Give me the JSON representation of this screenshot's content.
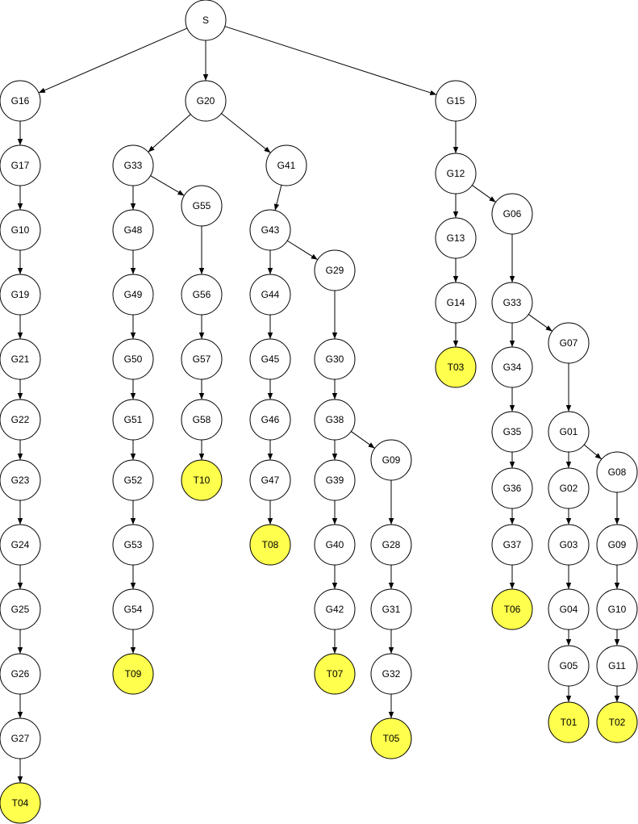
{
  "colors": {
    "node_fill": "#ffffff",
    "terminal_fill": "#ffff4d",
    "stroke": "#000000",
    "background": "#ffffff"
  },
  "nodes": [
    {
      "id": "S",
      "label": "S"
    },
    {
      "id": "G16",
      "label": "G16"
    },
    {
      "id": "G17",
      "label": "G17"
    },
    {
      "id": "G10a",
      "label": "G10"
    },
    {
      "id": "G19",
      "label": "G19"
    },
    {
      "id": "G21",
      "label": "G21"
    },
    {
      "id": "G22",
      "label": "G22"
    },
    {
      "id": "G23",
      "label": "G23"
    },
    {
      "id": "G24",
      "label": "G24"
    },
    {
      "id": "G25",
      "label": "G25"
    },
    {
      "id": "G26",
      "label": "G26"
    },
    {
      "id": "G27",
      "label": "G27"
    },
    {
      "id": "T04",
      "label": "T04",
      "terminal": true
    },
    {
      "id": "G20",
      "label": "G20"
    },
    {
      "id": "G33a",
      "label": "G33"
    },
    {
      "id": "G48",
      "label": "G48"
    },
    {
      "id": "G49",
      "label": "G49"
    },
    {
      "id": "G50",
      "label": "G50"
    },
    {
      "id": "G51",
      "label": "G51"
    },
    {
      "id": "G52",
      "label": "G52"
    },
    {
      "id": "G53",
      "label": "G53"
    },
    {
      "id": "G54",
      "label": "G54"
    },
    {
      "id": "T09",
      "label": "T09",
      "terminal": true
    },
    {
      "id": "G55",
      "label": "G55"
    },
    {
      "id": "G56",
      "label": "G56"
    },
    {
      "id": "G57",
      "label": "G57"
    },
    {
      "id": "G58",
      "label": "G58"
    },
    {
      "id": "T10",
      "label": "T10",
      "terminal": true
    },
    {
      "id": "G41",
      "label": "G41"
    },
    {
      "id": "G43",
      "label": "G43"
    },
    {
      "id": "G44",
      "label": "G44"
    },
    {
      "id": "G45",
      "label": "G45"
    },
    {
      "id": "G46",
      "label": "G46"
    },
    {
      "id": "G47",
      "label": "G47"
    },
    {
      "id": "T08",
      "label": "T08",
      "terminal": true
    },
    {
      "id": "G29",
      "label": "G29"
    },
    {
      "id": "G30",
      "label": "G30"
    },
    {
      "id": "G38",
      "label": "G38"
    },
    {
      "id": "G39",
      "label": "G39"
    },
    {
      "id": "G40",
      "label": "G40"
    },
    {
      "id": "G42",
      "label": "G42"
    },
    {
      "id": "T07",
      "label": "T07",
      "terminal": true
    },
    {
      "id": "G09a",
      "label": "G09"
    },
    {
      "id": "G28",
      "label": "G28"
    },
    {
      "id": "G31",
      "label": "G31"
    },
    {
      "id": "G32",
      "label": "G32"
    },
    {
      "id": "T05",
      "label": "T05",
      "terminal": true
    },
    {
      "id": "G15",
      "label": "G15"
    },
    {
      "id": "G12",
      "label": "G12"
    },
    {
      "id": "G13",
      "label": "G13"
    },
    {
      "id": "G14",
      "label": "G14"
    },
    {
      "id": "T03",
      "label": "T03",
      "terminal": true
    },
    {
      "id": "G06",
      "label": "G06"
    },
    {
      "id": "G33b",
      "label": "G33"
    },
    {
      "id": "G34",
      "label": "G34"
    },
    {
      "id": "G35",
      "label": "G35"
    },
    {
      "id": "G36",
      "label": "G36"
    },
    {
      "id": "G37",
      "label": "G37"
    },
    {
      "id": "T06",
      "label": "T06",
      "terminal": true
    },
    {
      "id": "G07",
      "label": "G07"
    },
    {
      "id": "G01",
      "label": "G01"
    },
    {
      "id": "G02",
      "label": "G02"
    },
    {
      "id": "G03",
      "label": "G03"
    },
    {
      "id": "G04",
      "label": "G04"
    },
    {
      "id": "G05",
      "label": "G05"
    },
    {
      "id": "T01",
      "label": "T01",
      "terminal": true
    },
    {
      "id": "G08",
      "label": "G08"
    },
    {
      "id": "G09b",
      "label": "G09"
    },
    {
      "id": "G10b",
      "label": "G10"
    },
    {
      "id": "G11",
      "label": "G11"
    },
    {
      "id": "T02",
      "label": "T02",
      "terminal": true
    }
  ],
  "edges": [
    [
      "S",
      "G16"
    ],
    [
      "S",
      "G20"
    ],
    [
      "S",
      "G15"
    ],
    [
      "G16",
      "G17"
    ],
    [
      "G17",
      "G10a"
    ],
    [
      "G10a",
      "G19"
    ],
    [
      "G19",
      "G21"
    ],
    [
      "G21",
      "G22"
    ],
    [
      "G22",
      "G23"
    ],
    [
      "G23",
      "G24"
    ],
    [
      "G24",
      "G25"
    ],
    [
      "G25",
      "G26"
    ],
    [
      "G26",
      "G27"
    ],
    [
      "G27",
      "T04"
    ],
    [
      "G20",
      "G33a"
    ],
    [
      "G20",
      "G41"
    ],
    [
      "G33a",
      "G48"
    ],
    [
      "G33a",
      "G55"
    ],
    [
      "G48",
      "G49"
    ],
    [
      "G49",
      "G50"
    ],
    [
      "G50",
      "G51"
    ],
    [
      "G51",
      "G52"
    ],
    [
      "G52",
      "G53"
    ],
    [
      "G53",
      "G54"
    ],
    [
      "G54",
      "T09"
    ],
    [
      "G55",
      "G56"
    ],
    [
      "G56",
      "G57"
    ],
    [
      "G57",
      "G58"
    ],
    [
      "G58",
      "T10"
    ],
    [
      "G41",
      "G43"
    ],
    [
      "G43",
      "G44"
    ],
    [
      "G43",
      "G29"
    ],
    [
      "G44",
      "G45"
    ],
    [
      "G45",
      "G46"
    ],
    [
      "G46",
      "G47"
    ],
    [
      "G47",
      "T08"
    ],
    [
      "G29",
      "G30"
    ],
    [
      "G30",
      "G38"
    ],
    [
      "G38",
      "G39"
    ],
    [
      "G38",
      "G09a"
    ],
    [
      "G39",
      "G40"
    ],
    [
      "G40",
      "G42"
    ],
    [
      "G42",
      "T07"
    ],
    [
      "G09a",
      "G28"
    ],
    [
      "G28",
      "G31"
    ],
    [
      "G31",
      "G32"
    ],
    [
      "G32",
      "T05"
    ],
    [
      "G15",
      "G12"
    ],
    [
      "G12",
      "G13"
    ],
    [
      "G12",
      "G06"
    ],
    [
      "G13",
      "G14"
    ],
    [
      "G14",
      "T03"
    ],
    [
      "G06",
      "G33b"
    ],
    [
      "G33b",
      "G34"
    ],
    [
      "G33b",
      "G07"
    ],
    [
      "G34",
      "G35"
    ],
    [
      "G35",
      "G36"
    ],
    [
      "G36",
      "G37"
    ],
    [
      "G37",
      "T06"
    ],
    [
      "G07",
      "G01"
    ],
    [
      "G01",
      "G02"
    ],
    [
      "G01",
      "G08"
    ],
    [
      "G02",
      "G03"
    ],
    [
      "G03",
      "G04"
    ],
    [
      "G04",
      "G05"
    ],
    [
      "G05",
      "T01"
    ],
    [
      "G08",
      "G09b"
    ],
    [
      "G09b",
      "G10b"
    ],
    [
      "G10b",
      "G11"
    ],
    [
      "G11",
      "T02"
    ]
  ]
}
